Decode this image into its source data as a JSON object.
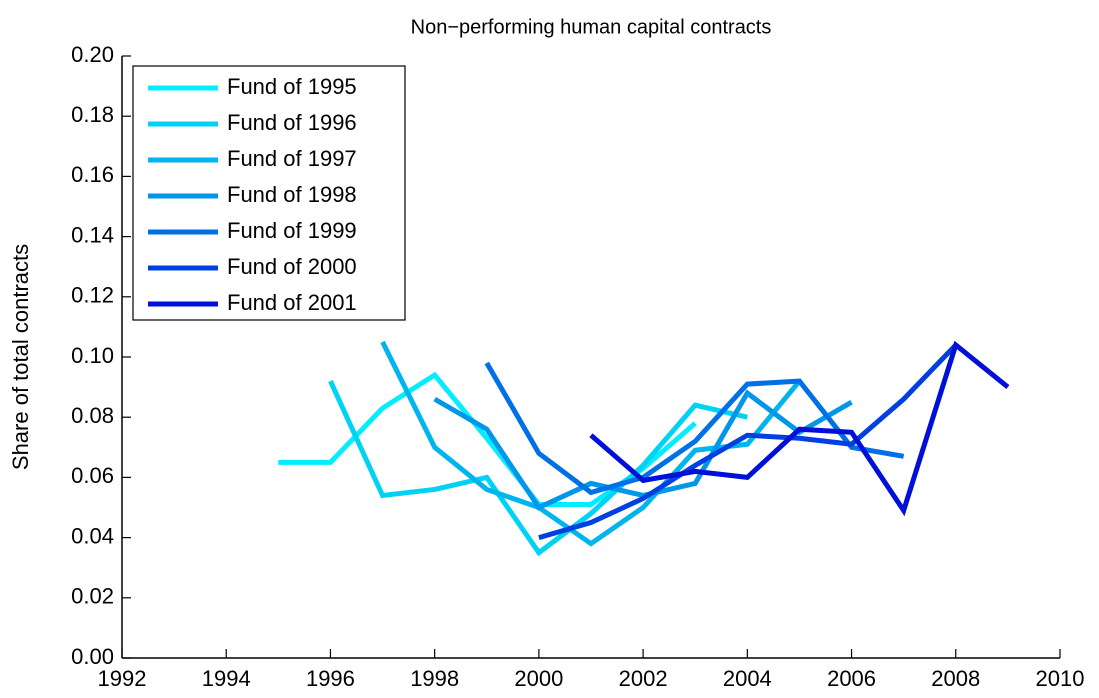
{
  "chart_data": {
    "type": "line",
    "title": "Non−performing human capital contracts",
    "y_label": "Share of total contracts",
    "xlim": [
      1992,
      2010
    ],
    "xticks": [
      1992,
      1994,
      1996,
      1998,
      2000,
      2002,
      2004,
      2006,
      2008,
      2010
    ],
    "ylim": [
      0,
      0.2
    ],
    "yticks": [
      {
        "value": 0,
        "label": "0.00"
      },
      {
        "value": 0.02,
        "label": "0.02"
      },
      {
        "value": 0.04,
        "label": "0.04"
      },
      {
        "value": 0.06,
        "label": "0.06"
      },
      {
        "value": 0.08,
        "label": "0.08"
      },
      {
        "value": 0.1,
        "label": "0.10"
      },
      {
        "value": 0.12,
        "label": "0.12"
      },
      {
        "value": 0.14,
        "label": "0.14"
      },
      {
        "value": 0.16,
        "label": "0.16"
      },
      {
        "value": 0.18,
        "label": "0.18"
      },
      {
        "value": 0.2,
        "label": "0.20"
      }
    ],
    "legend": "upper left",
    "series": [
      {
        "name": "Fund of 1995",
        "color": "#00eeff",
        "x": [
          1995,
          1996,
          1997,
          1998,
          1999,
          2000,
          2001,
          2002,
          2003
        ],
        "values": [
          0.065,
          0.065,
          0.083,
          0.094,
          0.073,
          0.051,
          0.051,
          0.063,
          0.078
        ]
      },
      {
        "name": "Fund of 1996",
        "color": "#00d2f5",
        "x": [
          1996,
          1997,
          1998,
          1999,
          2000,
          2001,
          2002,
          2003,
          2004
        ],
        "values": [
          0.092,
          0.054,
          0.056,
          0.06,
          0.035,
          0.048,
          0.064,
          0.084,
          0.08
        ]
      },
      {
        "name": "Fund of 1997",
        "color": "#00b4ee",
        "x": [
          1997,
          1998,
          1999,
          2000,
          2001,
          2002,
          2003,
          2004,
          2005
        ],
        "values": [
          0.105,
          0.07,
          0.056,
          0.05,
          0.038,
          0.05,
          0.069,
          0.071,
          0.092
        ]
      },
      {
        "name": "Fund of 1998",
        "color": "#0096ea",
        "x": [
          1998,
          1999,
          2000,
          2001,
          2002,
          2003,
          2004,
          2005,
          2006
        ],
        "values": [
          0.086,
          0.076,
          0.05,
          0.058,
          0.054,
          0.058,
          0.088,
          0.075,
          0.085
        ]
      },
      {
        "name": "Fund of 1999",
        "color": "#0070e6",
        "x": [
          1999,
          2000,
          2001,
          2002,
          2003,
          2004,
          2005,
          2006,
          2007
        ],
        "values": [
          0.098,
          0.068,
          0.055,
          0.06,
          0.072,
          0.091,
          0.092,
          0.07,
          0.067
        ]
      },
      {
        "name": "Fund of 2000",
        "color": "#0040e0",
        "x": [
          2000,
          2001,
          2002,
          2003,
          2004,
          2005,
          2006,
          2007,
          2008
        ],
        "values": [
          0.04,
          0.045,
          0.053,
          0.064,
          0.074,
          0.073,
          0.071,
          0.086,
          0.104
        ]
      },
      {
        "name": "Fund of 2001",
        "color": "#0010d8",
        "x": [
          2001,
          2002,
          2003,
          2004,
          2005,
          2006,
          2007,
          2008,
          2009
        ],
        "values": [
          0.074,
          0.059,
          0.062,
          0.06,
          0.076,
          0.075,
          0.049,
          0.104,
          0.09
        ]
      }
    ]
  }
}
